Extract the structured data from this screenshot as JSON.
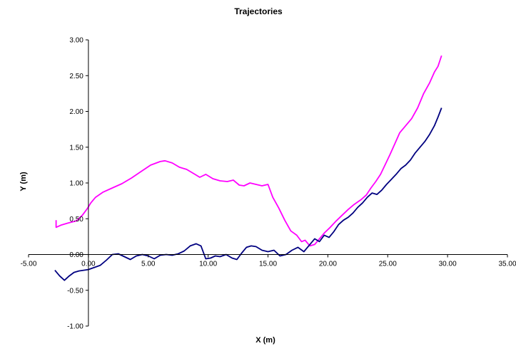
{
  "chart_data": {
    "type": "line",
    "title": "Trajectories",
    "xlabel": "X (m)",
    "ylabel": "Y (m)",
    "xlim": [
      -5,
      35
    ],
    "ylim": [
      -1,
      3
    ],
    "grid": false,
    "x_ticks": [
      -5,
      0,
      5,
      10,
      15,
      20,
      25,
      30,
      35
    ],
    "x_tick_labels": [
      "-5.00",
      "0.00",
      "5.00",
      "10.00",
      "15.00",
      "20.00",
      "25.00",
      "30.00",
      "35.00"
    ],
    "y_ticks": [
      -1,
      -0.5,
      0,
      0.5,
      1,
      1.5,
      2,
      2.5,
      3
    ],
    "y_tick_labels": [
      "-1.00",
      "-0.50",
      "0.00",
      "0.50",
      "1.00",
      "1.50",
      "2.00",
      "2.50",
      "3.00"
    ],
    "series": [
      {
        "color": "#ff00ff",
        "points": [
          [
            -2.7,
            0.48
          ],
          [
            -2.7,
            0.38
          ],
          [
            -2.3,
            0.41
          ],
          [
            -1.7,
            0.44
          ],
          [
            -1.0,
            0.47
          ],
          [
            -0.5,
            0.55
          ],
          [
            -0.1,
            0.64
          ],
          [
            0.2,
            0.72
          ],
          [
            0.6,
            0.8
          ],
          [
            1.2,
            0.87
          ],
          [
            2.0,
            0.93
          ],
          [
            2.8,
            0.99
          ],
          [
            3.6,
            1.07
          ],
          [
            4.4,
            1.16
          ],
          [
            5.2,
            1.25
          ],
          [
            6.0,
            1.3
          ],
          [
            6.4,
            1.31
          ],
          [
            7.0,
            1.28
          ],
          [
            7.6,
            1.22
          ],
          [
            8.2,
            1.19
          ],
          [
            8.8,
            1.13
          ],
          [
            9.3,
            1.08
          ],
          [
            9.8,
            1.12
          ],
          [
            10.4,
            1.06
          ],
          [
            11.0,
            1.03
          ],
          [
            11.6,
            1.02
          ],
          [
            12.1,
            1.04
          ],
          [
            12.6,
            0.97
          ],
          [
            13.0,
            0.96
          ],
          [
            13.5,
            1.0
          ],
          [
            14.0,
            0.98
          ],
          [
            14.5,
            0.96
          ],
          [
            15.0,
            0.98
          ],
          [
            15.4,
            0.8
          ],
          [
            15.9,
            0.65
          ],
          [
            16.4,
            0.48
          ],
          [
            16.9,
            0.33
          ],
          [
            17.4,
            0.27
          ],
          [
            17.8,
            0.18
          ],
          [
            18.1,
            0.2
          ],
          [
            18.5,
            0.12
          ],
          [
            18.9,
            0.14
          ],
          [
            19.3,
            0.22
          ],
          [
            19.7,
            0.3
          ],
          [
            20.2,
            0.38
          ],
          [
            20.7,
            0.47
          ],
          [
            21.2,
            0.55
          ],
          [
            21.7,
            0.63
          ],
          [
            22.2,
            0.7
          ],
          [
            22.8,
            0.77
          ],
          [
            23.2,
            0.83
          ],
          [
            23.6,
            0.93
          ],
          [
            24.0,
            1.02
          ],
          [
            24.4,
            1.12
          ],
          [
            24.8,
            1.26
          ],
          [
            25.2,
            1.4
          ],
          [
            25.6,
            1.55
          ],
          [
            26.0,
            1.7
          ],
          [
            26.5,
            1.8
          ],
          [
            27.0,
            1.9
          ],
          [
            27.5,
            2.05
          ],
          [
            28.0,
            2.25
          ],
          [
            28.5,
            2.4
          ],
          [
            28.9,
            2.55
          ],
          [
            29.2,
            2.63
          ],
          [
            29.5,
            2.78
          ]
        ]
      },
      {
        "color": "#000080",
        "points": [
          [
            -2.8,
            -0.22
          ],
          [
            -2.4,
            -0.3
          ],
          [
            -2.0,
            -0.36
          ],
          [
            -1.6,
            -0.3
          ],
          [
            -1.2,
            -0.25
          ],
          [
            -0.8,
            -0.23
          ],
          [
            -0.4,
            -0.22
          ],
          [
            0.0,
            -0.21
          ],
          [
            0.5,
            -0.18
          ],
          [
            1.0,
            -0.15
          ],
          [
            1.5,
            -0.08
          ],
          [
            2.0,
            0.0
          ],
          [
            2.5,
            0.01
          ],
          [
            3.0,
            -0.03
          ],
          [
            3.5,
            -0.07
          ],
          [
            4.0,
            -0.02
          ],
          [
            4.5,
            0.0
          ],
          [
            5.0,
            -0.02
          ],
          [
            5.5,
            -0.06
          ],
          [
            6.0,
            -0.01
          ],
          [
            6.5,
            0.0
          ],
          [
            7.0,
            -0.01
          ],
          [
            7.5,
            0.01
          ],
          [
            8.0,
            0.05
          ],
          [
            8.5,
            0.12
          ],
          [
            9.0,
            0.15
          ],
          [
            9.4,
            0.12
          ],
          [
            9.8,
            -0.06
          ],
          [
            10.2,
            -0.05
          ],
          [
            10.6,
            -0.02
          ],
          [
            11.0,
            -0.03
          ],
          [
            11.5,
            0.0
          ],
          [
            12.0,
            -0.05
          ],
          [
            12.4,
            -0.07
          ],
          [
            12.8,
            0.02
          ],
          [
            13.2,
            0.1
          ],
          [
            13.6,
            0.12
          ],
          [
            14.0,
            0.11
          ],
          [
            14.5,
            0.06
          ],
          [
            15.0,
            0.04
          ],
          [
            15.5,
            0.06
          ],
          [
            16.0,
            -0.02
          ],
          [
            16.5,
            0.0
          ],
          [
            17.0,
            0.06
          ],
          [
            17.5,
            0.1
          ],
          [
            18.0,
            0.04
          ],
          [
            18.5,
            0.14
          ],
          [
            18.9,
            0.22
          ],
          [
            19.3,
            0.18
          ],
          [
            19.7,
            0.27
          ],
          [
            20.1,
            0.24
          ],
          [
            20.5,
            0.32
          ],
          [
            20.9,
            0.42
          ],
          [
            21.3,
            0.48
          ],
          [
            21.7,
            0.52
          ],
          [
            22.1,
            0.58
          ],
          [
            22.5,
            0.66
          ],
          [
            22.9,
            0.72
          ],
          [
            23.3,
            0.8
          ],
          [
            23.7,
            0.86
          ],
          [
            24.1,
            0.84
          ],
          [
            24.5,
            0.9
          ],
          [
            24.9,
            0.98
          ],
          [
            25.3,
            1.05
          ],
          [
            25.7,
            1.12
          ],
          [
            26.1,
            1.2
          ],
          [
            26.5,
            1.25
          ],
          [
            26.9,
            1.32
          ],
          [
            27.3,
            1.42
          ],
          [
            27.7,
            1.5
          ],
          [
            28.1,
            1.58
          ],
          [
            28.5,
            1.68
          ],
          [
            28.9,
            1.8
          ],
          [
            29.2,
            1.92
          ],
          [
            29.5,
            2.05
          ]
        ]
      }
    ]
  }
}
